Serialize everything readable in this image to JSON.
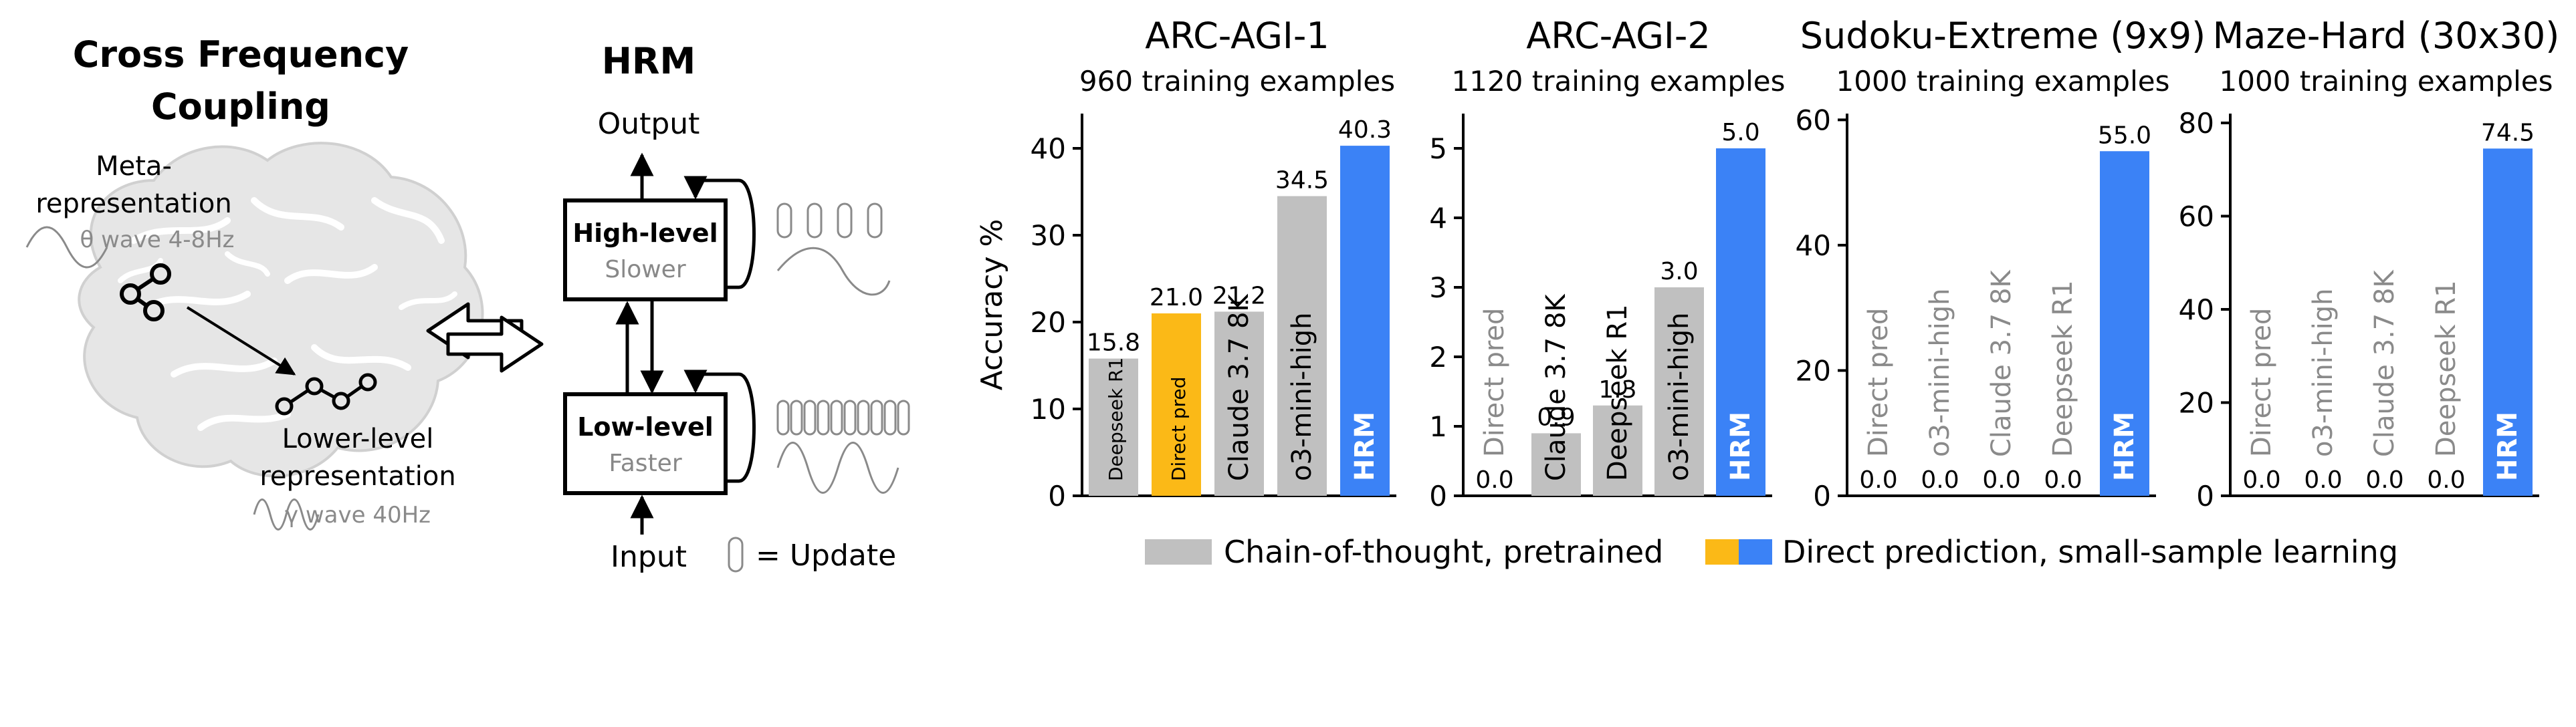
{
  "left_panel": {
    "title_line1": "Cross Frequency",
    "title_line2": "Coupling",
    "meta_line1": "Meta-",
    "meta_line2": "representation",
    "theta_label": "θ wave 4-8Hz",
    "lower_line1": "Lower-level",
    "lower_line2": "representation",
    "gamma_label": "γ wave 40Hz"
  },
  "hrm_panel": {
    "title": "HRM",
    "output_label": "Output",
    "high_title": "High-level",
    "high_sub": "Slower",
    "low_title": "Low-level",
    "low_sub": "Faster",
    "input_label": "Input",
    "update_label": "= Update"
  },
  "legend": {
    "cot_label": "Chain-of-thought, pretrained",
    "direct_label": "Direct prediction, small-sample learning"
  },
  "colors": {
    "gray_bar": "#c0c0c0",
    "yellow_bar": "#fbb917",
    "blue_bar": "#3b82f6",
    "brain": "#e6e6e6",
    "brain_line": "#ffffff",
    "wave": "#8a8a8a"
  },
  "chart_data": [
    {
      "type": "bar",
      "title": "ARC-AGI-1",
      "subtitle": "960 training examples",
      "ylabel": "Accuracy %",
      "ylim": [
        0,
        44
      ],
      "yticks": [
        0,
        10,
        20,
        30,
        40
      ],
      "categories": [
        "Deepseek R1",
        "Direct pred",
        "Claude 3.7 8K",
        "o3-mini-high",
        "HRM"
      ],
      "values": [
        15.8,
        21.0,
        21.2,
        34.5,
        40.3
      ],
      "value_labels": [
        "15.8",
        "21.0",
        "21.2",
        "34.5",
        "40.3"
      ],
      "bar_colors": [
        "gray",
        "yellow",
        "gray",
        "gray",
        "blue"
      ]
    },
    {
      "type": "bar",
      "title": "ARC-AGI-2",
      "subtitle": "1120 training examples",
      "ylabel": "",
      "ylim": [
        0,
        5.5
      ],
      "yticks": [
        0,
        1,
        2,
        3,
        4,
        5
      ],
      "categories": [
        "Direct pred",
        "Claude 3.7 8K",
        "Deepseek R1",
        "o3-mini-high",
        "HRM"
      ],
      "values": [
        0.0,
        0.9,
        1.3,
        3.0,
        5.0
      ],
      "value_labels": [
        "0.0",
        "0.9",
        "1.3",
        "3.0",
        "5.0"
      ],
      "bar_colors": [
        "yellow",
        "gray",
        "gray",
        "gray",
        "blue"
      ]
    },
    {
      "type": "bar",
      "title": "Sudoku-Extreme (9x9)",
      "subtitle": "1000 training examples",
      "ylabel": "",
      "ylim": [
        0,
        61
      ],
      "yticks": [
        0,
        20,
        40,
        60
      ],
      "categories": [
        "Direct pred",
        "o3-mini-high",
        "Claude 3.7 8K",
        "Deepseek R1",
        "HRM"
      ],
      "values": [
        0.0,
        0.0,
        0.0,
        0.0,
        55.0
      ],
      "value_labels": [
        "0.0",
        "0.0",
        "0.0",
        "0.0",
        "55.0"
      ],
      "bar_colors": [
        "yellow",
        "gray",
        "gray",
        "gray",
        "blue"
      ]
    },
    {
      "type": "bar",
      "title": "Maze-Hard (30x30)",
      "subtitle": "1000 training examples",
      "ylabel": "",
      "ylim": [
        0,
        82
      ],
      "yticks": [
        0,
        20,
        40,
        60,
        80
      ],
      "categories": [
        "Direct pred",
        "o3-mini-high",
        "Claude 3.7 8K",
        "Deepseek R1",
        "HRM"
      ],
      "values": [
        0.0,
        0.0,
        0.0,
        0.0,
        74.5
      ],
      "value_labels": [
        "0.0",
        "0.0",
        "0.0",
        "0.0",
        "74.5"
      ],
      "bar_colors": [
        "yellow",
        "gray",
        "gray",
        "gray",
        "blue"
      ]
    }
  ]
}
